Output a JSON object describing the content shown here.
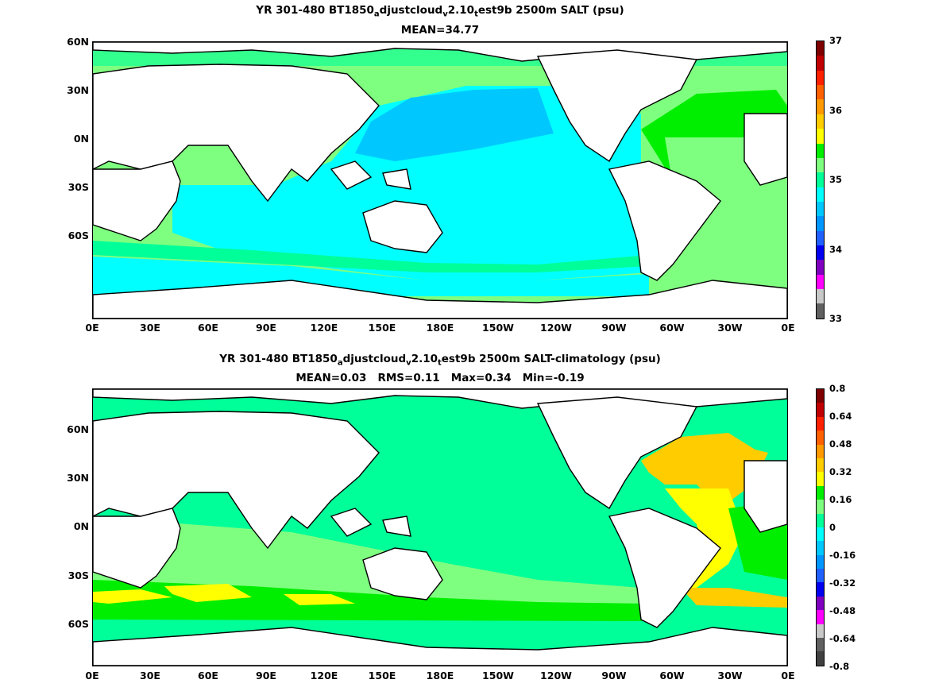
{
  "top": {
    "title_prefix": "YR 301-480 BT1850",
    "title_sub1": "a",
    "title_mid": "djustcloud",
    "title_sub2": "v",
    "title_mid2": "2.10",
    "title_sub3": "t",
    "title_suffix": "est9b 2500m SALT (psu)",
    "stats": "MEAN=34.77",
    "colorbar": {
      "labels": [
        "37",
        "36",
        "35",
        "34",
        "33"
      ],
      "colors": [
        "#7f0000",
        "#c00000",
        "#ff2000",
        "#ff6000",
        "#ff9900",
        "#ffcc00",
        "#ffff00",
        "#00ee00",
        "#7fff7f",
        "#00ff99",
        "#00ffff",
        "#00c8ff",
        "#0096ff",
        "#2060ff",
        "#0000ee",
        "#8000c0",
        "#ff00ff",
        "#c8c8c8",
        "#606060"
      ]
    }
  },
  "bottom": {
    "title_prefix": "YR 301-480 BT1850",
    "title_sub1": "a",
    "title_mid": "djustcloud",
    "title_sub2": "v",
    "title_mid2": "2.10",
    "title_sub3": "t",
    "title_suffix": "est9b 2500m SALT-climatology (psu)",
    "stats": "MEAN=0.03   RMS=0.11   Max=0.34   Min=-0.19",
    "colorbar": {
      "labels": [
        "0.8",
        "0.64",
        "0.48",
        "0.32",
        "0.16",
        "0",
        "-0.16",
        "-0.32",
        "-0.48",
        "-0.64",
        "-0.8"
      ],
      "colors": [
        "#7f0000",
        "#c00000",
        "#ff2000",
        "#ff6000",
        "#ff9900",
        "#ffcc00",
        "#ffff00",
        "#00ee00",
        "#7fff7f",
        "#00ff99",
        "#00ffff",
        "#00c8ff",
        "#0096ff",
        "#2060ff",
        "#0000ee",
        "#8000c0",
        "#ff00ff",
        "#c8c8c8",
        "#606060",
        "#404040"
      ]
    }
  },
  "axes": {
    "lat_labels": [
      "60N",
      "30N",
      "0N",
      "30S",
      "60S"
    ],
    "lon_labels": [
      "0E",
      "30E",
      "60E",
      "90E",
      "120E",
      "150E",
      "180E",
      "150W",
      "120W",
      "90W",
      "60W",
      "30W",
      "0E"
    ]
  }
}
